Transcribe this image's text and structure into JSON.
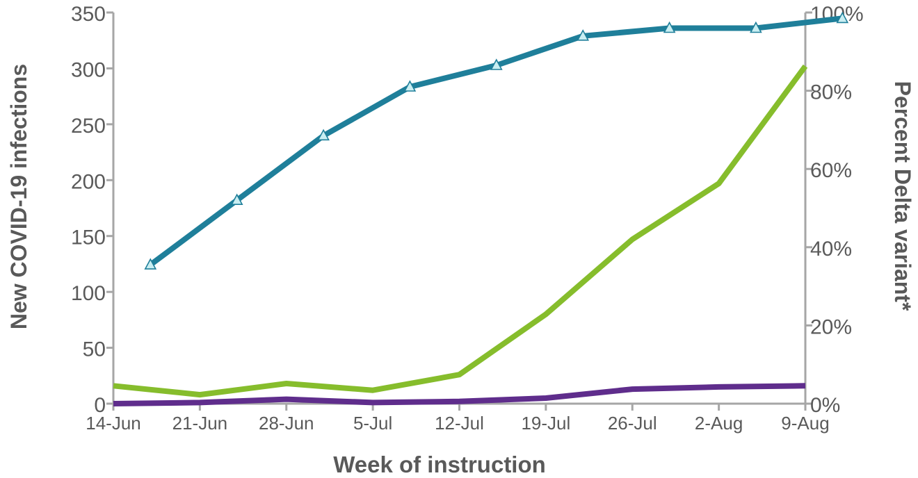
{
  "chart_data": {
    "type": "line",
    "xlabel": "Week of instruction",
    "ylabel_left": "New COVID-19 infections",
    "ylabel_right": "Percent Delta variant*",
    "x_ticks": [
      "14-Jun",
      "21-Jun",
      "28-Jun",
      "5-Jul",
      "12-Jul",
      "19-Jul",
      "26-Jul",
      "2-Aug",
      "9-Aug"
    ],
    "y_left_ticks": [
      "0",
      "50",
      "100",
      "150",
      "200",
      "250",
      "300",
      "350"
    ],
    "y_left_lim": [
      0,
      350
    ],
    "y_right_ticks": [
      "0%",
      "20%",
      "40%",
      "60%",
      "80%",
      "100%"
    ],
    "y_right_lim": [
      0,
      100
    ],
    "grid": false,
    "legend": "none",
    "series": [
      {
        "axis": "right",
        "color": "#1f7f9a",
        "marker": "triangle",
        "marker_fill": "#c9eef2",
        "x": [
          "17-Jun",
          "24-Jun",
          "1-Jul",
          "8-Jul",
          "15-Jul",
          "22-Jul",
          "29-Jul",
          "5-Aug",
          "12-Aug"
        ],
        "values": [
          35.5,
          52,
          68.5,
          81,
          86.5,
          94,
          96,
          96,
          98.5
        ]
      },
      {
        "axis": "left",
        "color": "#86bd2c",
        "marker": "none",
        "x": [
          "14-Jun",
          "21-Jun",
          "28-Jun",
          "5-Jul",
          "12-Jul",
          "19-Jul",
          "26-Jul",
          "2-Aug",
          "9-Aug"
        ],
        "values": [
          16,
          8,
          18,
          12,
          26,
          80,
          147,
          197,
          302
        ]
      },
      {
        "axis": "left",
        "color": "#5f2d8c",
        "marker": "none",
        "x": [
          "14-Jun",
          "21-Jun",
          "28-Jun",
          "5-Jul",
          "12-Jul",
          "19-Jul",
          "26-Jul",
          "2-Aug",
          "9-Aug"
        ],
        "values": [
          0,
          1,
          4,
          1,
          2,
          5,
          13,
          15,
          16
        ]
      }
    ]
  }
}
